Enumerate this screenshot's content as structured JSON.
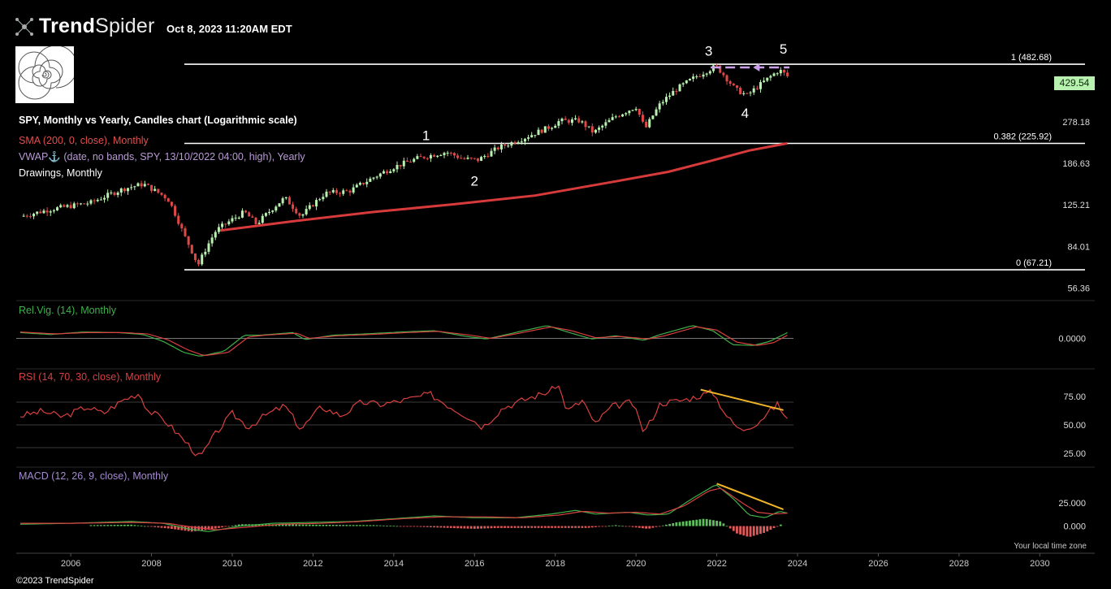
{
  "brand": {
    "name_bold": "Trend",
    "name_light": "Spider"
  },
  "timestamp": "Oct 8, 2023 11:20AM EDT",
  "legend": {
    "title": "SPY, Monthly vs Yearly, Candles chart (Logarithmic scale)",
    "sma": "SMA (200, 0, close), Monthly",
    "vwap": "VWAP⚓ (date, no bands, SPY, 13/10/2022 04:00, high), Yearly",
    "drawings": "Drawings, Monthly"
  },
  "panels": {
    "relvig_label": "Rel.Vig. (14), Monthly",
    "rsi_label": "RSI (14, 70, 30, close), Monthly",
    "macd_label": "MACD (12, 26, 9, close), Monthly"
  },
  "copyright": "©2023 TrendSpider",
  "timezone_note": "Your local time zone",
  "last_price": "429.54",
  "colors": {
    "background": "#000000",
    "bull": "#b9f2b0",
    "bear": "#e04848",
    "sma": "#d63a3a",
    "vwap": "#c9a0e8",
    "trendline": "#f0b429",
    "fib_line": "#ffffff"
  },
  "chart_data": [
    {
      "type": "candlestick",
      "title": "SPY, Monthly vs Yearly, Candles chart (Logarithmic scale)",
      "yscale": "log",
      "ylim": [
        52,
        560
      ],
      "y_ticks": [
        "278.18",
        "186.63",
        "125.21",
        "84.01",
        "56.36"
      ],
      "x_ticks": [
        "2006",
        "2008",
        "2010",
        "2012",
        "2014",
        "2016",
        "2018",
        "2020",
        "2022",
        "2024",
        "2026",
        "2028",
        "2030"
      ],
      "xlim": [
        2004.65,
        2031.2
      ],
      "price_path": [
        [
          2004.75,
          112
        ],
        [
          2005.5,
          120
        ],
        [
          2006.5,
          128
        ],
        [
          2007.3,
          146
        ],
        [
          2007.8,
          153
        ],
        [
          2008.4,
          133
        ],
        [
          2008.8,
          94
        ],
        [
          2009.15,
          70
        ],
        [
          2009.6,
          98
        ],
        [
          2010.3,
          117
        ],
        [
          2010.6,
          104
        ],
        [
          2011.3,
          134
        ],
        [
          2011.7,
          112
        ],
        [
          2012.3,
          140
        ],
        [
          2012.9,
          143
        ],
        [
          2013.5,
          163
        ],
        [
          2014.0,
          180
        ],
        [
          2014.6,
          196
        ],
        [
          2015.3,
          208
        ],
        [
          2015.7,
          195
        ],
        [
          2016.1,
          193
        ],
        [
          2016.6,
          217
        ],
        [
          2017.2,
          237
        ],
        [
          2017.9,
          266
        ],
        [
          2018.1,
          280
        ],
        [
          2018.6,
          281
        ],
        [
          2018.95,
          250
        ],
        [
          2019.5,
          293
        ],
        [
          2020.0,
          321
        ],
        [
          2020.22,
          258
        ],
        [
          2020.6,
          330
        ],
        [
          2021.0,
          380
        ],
        [
          2021.5,
          430
        ],
        [
          2021.98,
          474
        ],
        [
          2022.45,
          380
        ],
        [
          2022.75,
          358
        ],
        [
          2023.1,
          400
        ],
        [
          2023.55,
          457
        ],
        [
          2023.75,
          430
        ]
      ],
      "sma": {
        "name": "SMA (200, 0, close), Monthly",
        "path": [
          [
            2009.7,
            98
          ],
          [
            2011.5,
            107
          ],
          [
            2013.5,
            117
          ],
          [
            2015.5,
            126
          ],
          [
            2017.5,
            137
          ],
          [
            2019.5,
            157
          ],
          [
            2020.8,
            172
          ],
          [
            2021.8,
            190
          ],
          [
            2022.8,
            211
          ],
          [
            2023.75,
            226
          ]
        ]
      },
      "fib_levels": [
        {
          "label": "1 (482.68)",
          "value": 482.68
        },
        {
          "label": "0.382 (225.92)",
          "value": 225.92
        },
        {
          "label": "0 (67.21)",
          "value": 67.21
        }
      ],
      "wave_labels": [
        {
          "label": "1",
          "x": 2014.8,
          "y": 233,
          "pos": "above"
        },
        {
          "label": "2",
          "x": 2016.0,
          "y": 168,
          "pos": "below"
        },
        {
          "label": "3",
          "x": 2021.8,
          "y": 525,
          "pos": "above"
        },
        {
          "label": "4",
          "x": 2022.7,
          "y": 322,
          "pos": "below"
        },
        {
          "label": "5",
          "x": 2023.65,
          "y": 535,
          "pos": "above"
        }
      ],
      "last_price": 429.54
    },
    {
      "type": "line",
      "title": "Rel.Vig. (14), Monthly",
      "y_ticks": [
        "0.0000"
      ],
      "ylim": [
        -0.4,
        0.4
      ],
      "series": [
        {
          "name": "Rel.Vig.",
          "color": "#3fb04a",
          "path": [
            [
              2004.75,
              0.09
            ],
            [
              2005.5,
              0.06
            ],
            [
              2006.3,
              0.1
            ],
            [
              2007.2,
              0.09
            ],
            [
              2007.8,
              0.06
            ],
            [
              2008.3,
              -0.05
            ],
            [
              2008.8,
              -0.22
            ],
            [
              2009.2,
              -0.28
            ],
            [
              2009.8,
              -0.2
            ],
            [
              2010.3,
              0.05
            ],
            [
              2010.7,
              0.05
            ],
            [
              2011.5,
              0.09
            ],
            [
              2011.8,
              -0.02
            ],
            [
              2012.5,
              0.05
            ],
            [
              2013.3,
              0.07
            ],
            [
              2014.2,
              0.1
            ],
            [
              2015.0,
              0.12
            ],
            [
              2015.8,
              0.03
            ],
            [
              2016.3,
              -0.01
            ],
            [
              2017.0,
              0.09
            ],
            [
              2017.8,
              0.2
            ],
            [
              2018.3,
              0.1
            ],
            [
              2018.9,
              -0.01
            ],
            [
              2019.5,
              0.04
            ],
            [
              2020.2,
              -0.03
            ],
            [
              2020.6,
              0.06
            ],
            [
              2021.4,
              0.2
            ],
            [
              2021.9,
              0.12
            ],
            [
              2022.4,
              -0.1
            ],
            [
              2022.9,
              -0.11
            ],
            [
              2023.3,
              -0.05
            ],
            [
              2023.75,
              0.09
            ]
          ]
        },
        {
          "name": "Signal",
          "color": "#d94040",
          "path": [
            [
              2004.75,
              0.1
            ],
            [
              2005.6,
              0.07
            ],
            [
              2006.4,
              0.09
            ],
            [
              2007.3,
              0.09
            ],
            [
              2007.9,
              0.07
            ],
            [
              2008.4,
              -0.02
            ],
            [
              2008.9,
              -0.18
            ],
            [
              2009.3,
              -0.27
            ],
            [
              2009.9,
              -0.22
            ],
            [
              2010.4,
              0.02
            ],
            [
              2010.8,
              0.05
            ],
            [
              2011.6,
              0.08
            ],
            [
              2011.9,
              0.0
            ],
            [
              2012.6,
              0.04
            ],
            [
              2013.4,
              0.06
            ],
            [
              2014.3,
              0.09
            ],
            [
              2015.1,
              0.11
            ],
            [
              2015.9,
              0.05
            ],
            [
              2016.4,
              0.0
            ],
            [
              2017.1,
              0.08
            ],
            [
              2017.9,
              0.18
            ],
            [
              2018.4,
              0.12
            ],
            [
              2019.0,
              0.01
            ],
            [
              2019.6,
              0.03
            ],
            [
              2020.3,
              -0.01
            ],
            [
              2020.7,
              0.04
            ],
            [
              2021.5,
              0.18
            ],
            [
              2022.0,
              0.13
            ],
            [
              2022.5,
              -0.06
            ],
            [
              2023.0,
              -0.11
            ],
            [
              2023.4,
              -0.07
            ],
            [
              2023.75,
              0.05
            ]
          ]
        }
      ]
    },
    {
      "type": "line",
      "title": "RSI (14, 70, 30, close), Monthly",
      "y_ticks": [
        "75.00",
        "50.00",
        "25.00"
      ],
      "ylim": [
        15,
        95
      ],
      "guides": [
        70,
        50,
        30
      ],
      "series": [
        {
          "name": "RSI",
          "color": "#d94040",
          "path": [
            [
              2004.75,
              58
            ],
            [
              2005.3,
              62
            ],
            [
              2005.8,
              57
            ],
            [
              2006.4,
              66
            ],
            [
              2006.8,
              60
            ],
            [
              2007.3,
              72
            ],
            [
              2007.7,
              78
            ],
            [
              2007.9,
              63
            ],
            [
              2008.3,
              55
            ],
            [
              2008.6,
              44
            ],
            [
              2008.9,
              33
            ],
            [
              2009.2,
              21
            ],
            [
              2009.6,
              43
            ],
            [
              2010.0,
              60
            ],
            [
              2010.4,
              48
            ],
            [
              2010.8,
              58
            ],
            [
              2011.3,
              67
            ],
            [
              2011.7,
              46
            ],
            [
              2012.2,
              66
            ],
            [
              2012.7,
              58
            ],
            [
              2013.2,
              70
            ],
            [
              2013.7,
              68
            ],
            [
              2014.3,
              72
            ],
            [
              2014.9,
              77
            ],
            [
              2015.4,
              66
            ],
            [
              2015.9,
              56
            ],
            [
              2016.2,
              48
            ],
            [
              2016.7,
              65
            ],
            [
              2017.3,
              73
            ],
            [
              2017.9,
              80
            ],
            [
              2018.05,
              87
            ],
            [
              2018.3,
              62
            ],
            [
              2018.7,
              72
            ],
            [
              2018.95,
              50
            ],
            [
              2019.4,
              66
            ],
            [
              2019.9,
              70
            ],
            [
              2020.2,
              43
            ],
            [
              2020.6,
              69
            ],
            [
              2021.2,
              72
            ],
            [
              2021.9,
              79
            ],
            [
              2022.3,
              55
            ],
            [
              2022.6,
              45
            ],
            [
              2023.0,
              52
            ],
            [
              2023.5,
              68
            ],
            [
              2023.75,
              55
            ]
          ]
        }
      ],
      "trendline": {
        "color": "#f0b429",
        "from": [
          2021.6,
          81
        ],
        "to": [
          2023.65,
          63
        ]
      }
    },
    {
      "type": "line",
      "title": "MACD (12, 26, 9, close), Monthly",
      "y_ticks": [
        "25.000",
        "0.000"
      ],
      "ylim": [
        -18,
        48
      ],
      "series": [
        {
          "name": "MACD",
          "color": "#3fb04a",
          "path": [
            [
              2004.75,
              2
            ],
            [
              2006.0,
              3
            ],
            [
              2007.5,
              5
            ],
            [
              2008.3,
              3
            ],
            [
              2008.9,
              -3
            ],
            [
              2009.4,
              -6
            ],
            [
              2010.2,
              0
            ],
            [
              2011.0,
              3
            ],
            [
              2012.0,
              4
            ],
            [
              2013.0,
              5
            ],
            [
              2014.0,
              8
            ],
            [
              2015.0,
              11
            ],
            [
              2016.0,
              9
            ],
            [
              2017.0,
              9
            ],
            [
              2017.9,
              13
            ],
            [
              2018.5,
              17
            ],
            [
              2019.0,
              13
            ],
            [
              2019.8,
              15
            ],
            [
              2020.3,
              12
            ],
            [
              2020.8,
              13
            ],
            [
              2021.4,
              30
            ],
            [
              2021.98,
              45
            ],
            [
              2022.4,
              30
            ],
            [
              2022.8,
              12
            ],
            [
              2023.2,
              9
            ],
            [
              2023.55,
              16
            ],
            [
              2023.75,
              14
            ]
          ]
        },
        {
          "name": "Signal",
          "color": "#d94040",
          "path": [
            [
              2004.75,
              3
            ],
            [
              2006.0,
              3
            ],
            [
              2007.5,
              4
            ],
            [
              2008.4,
              3
            ],
            [
              2009.0,
              -1
            ],
            [
              2009.6,
              -4
            ],
            [
              2010.4,
              -1
            ],
            [
              2011.2,
              2
            ],
            [
              2012.2,
              3
            ],
            [
              2013.2,
              5
            ],
            [
              2014.2,
              8
            ],
            [
              2015.2,
              10
            ],
            [
              2016.2,
              10
            ],
            [
              2017.2,
              9
            ],
            [
              2018.1,
              12
            ],
            [
              2018.7,
              16
            ],
            [
              2019.3,
              14
            ],
            [
              2020.0,
              15
            ],
            [
              2020.6,
              13
            ],
            [
              2021.2,
              22
            ],
            [
              2021.8,
              38
            ],
            [
              2022.1,
              41
            ],
            [
              2022.6,
              26
            ],
            [
              2023.0,
              15
            ],
            [
              2023.4,
              13
            ],
            [
              2023.75,
              14
            ]
          ]
        }
      ],
      "histogram": [
        [
          2006.5,
          1
        ],
        [
          2007.5,
          1.5
        ],
        [
          2008.5,
          -3
        ],
        [
          2009.0,
          -6
        ],
        [
          2009.4,
          -4
        ],
        [
          2010.2,
          2
        ],
        [
          2011.0,
          2
        ],
        [
          2012.0,
          1.5
        ],
        [
          2013.5,
          1
        ],
        [
          2016.0,
          -3
        ],
        [
          2016.6,
          -2
        ],
        [
          2018.8,
          -2
        ],
        [
          2019.5,
          1
        ],
        [
          2020.3,
          -3
        ],
        [
          2021.0,
          4
        ],
        [
          2021.7,
          8
        ],
        [
          2022.1,
          5
        ],
        [
          2022.5,
          -8
        ],
        [
          2022.8,
          -12
        ],
        [
          2023.2,
          -7
        ],
        [
          2023.6,
          2
        ]
      ],
      "trendline": {
        "color": "#f0b429",
        "from": [
          2022.0,
          46
        ],
        "to": [
          2023.65,
          18
        ]
      }
    }
  ]
}
